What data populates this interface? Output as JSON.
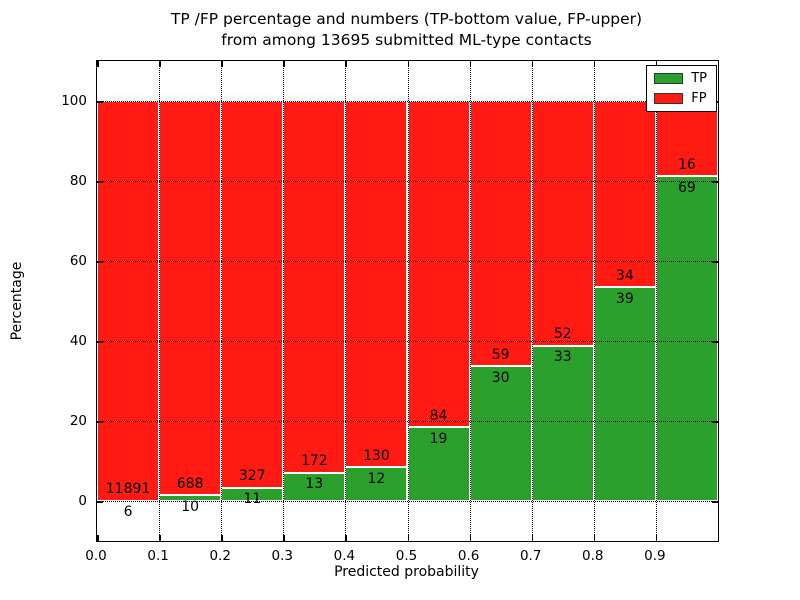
{
  "title": {
    "line1": "TP /FP percentage and numbers (TP-bottom value, FP-upper)",
    "line2": "from among 13695 submitted ML-type contacts"
  },
  "chart_data": {
    "type": "bar",
    "stacked": true,
    "normalized_to_percent": true,
    "title": "TP /FP percentage and numbers (TP-bottom value, FP-upper) from among 13695 submitted ML-type contacts",
    "total_submitted_contacts": 13695,
    "xlabel": "Predicted probability",
    "ylabel": "Percentage",
    "bins": [
      "0.0-0.1",
      "0.1-0.2",
      "0.2-0.3",
      "0.3-0.4",
      "0.4-0.5",
      "0.5-0.6",
      "0.6-0.7",
      "0.7-0.8",
      "0.8-0.9",
      "0.9-1.0"
    ],
    "bin_edges": [
      0.0,
      0.1,
      0.2,
      0.3,
      0.4,
      0.5,
      0.6,
      0.7,
      0.8,
      0.9,
      1.0
    ],
    "series": [
      {
        "name": "TP",
        "color": "#2ca02c",
        "counts": [
          6,
          10,
          11,
          13,
          12,
          19,
          30,
          33,
          39,
          69
        ]
      },
      {
        "name": "FP",
        "color": "#ff1a14",
        "counts": [
          11891,
          688,
          327,
          172,
          130,
          84,
          59,
          52,
          34,
          16
        ]
      }
    ],
    "tp_percent_of_bin": [
      0.05,
      1.43,
      3.25,
      7.03,
      8.45,
      18.45,
      33.71,
      38.82,
      53.42,
      81.18
    ],
    "x_ticks": [
      "0.0",
      "0.1",
      "0.2",
      "0.3",
      "0.4",
      "0.5",
      "0.6",
      "0.7",
      "0.8",
      "0.9"
    ],
    "x_tick_values": [
      0.0,
      0.1,
      0.2,
      0.3,
      0.4,
      0.5,
      0.6,
      0.7,
      0.8,
      0.9
    ],
    "xlim": [
      0.0,
      1.0
    ],
    "y_ticks": [
      "0",
      "20",
      "40",
      "60",
      "80",
      "100"
    ],
    "y_tick_values": [
      0,
      20,
      40,
      60,
      80,
      100
    ],
    "ylim": [
      -10,
      110
    ],
    "grid": true,
    "grid_style": "dotted",
    "legend_position": "upper right"
  },
  "colors": {
    "tp": "#2ca02c",
    "fp": "#ff1a14",
    "background": "#ffffff",
    "frame": "#000000"
  }
}
